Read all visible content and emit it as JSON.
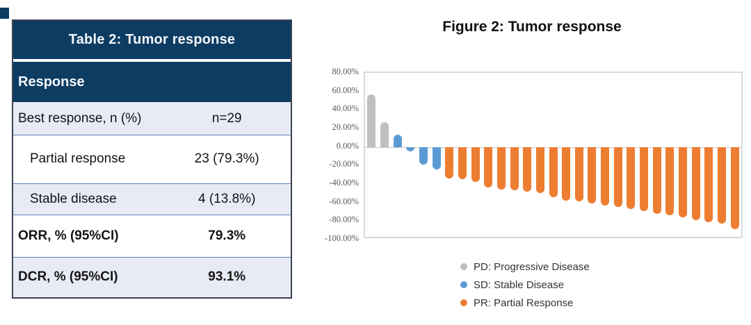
{
  "page": {
    "corner_mark_color": "#0d3c63"
  },
  "table": {
    "title": "Table 2: Tumor response",
    "column_header": "Response",
    "rows": [
      {
        "label": "Best response, n (%)",
        "value": "n=29",
        "indent": false,
        "bold": false,
        "shaded": true
      },
      {
        "label": "Partial response",
        "value": "23 (79.3%)",
        "indent": true,
        "bold": false,
        "shaded": false
      },
      {
        "label": "Stable disease",
        "value": "4 (13.8%)",
        "indent": true,
        "bold": false,
        "shaded": true
      },
      {
        "label": "ORR, % (95%CI)",
        "value": "79.3%",
        "indent": false,
        "bold": true,
        "shaded": false
      },
      {
        "label": "DCR, % (95%CI)",
        "value": "93.1%",
        "indent": false,
        "bold": true,
        "shaded": true
      }
    ],
    "colors": {
      "header_bg": "#0d3c63",
      "header_text": "#f4f6fa",
      "shaded_row_bg": "#e8ebf6",
      "plain_row_bg": "#ffffff",
      "row_separator": "#5d7fc0",
      "outer_border": "#3c4150"
    }
  },
  "chart_data": {
    "type": "bar",
    "title": "Figure 2: Tumor response",
    "subtitle": "",
    "xlabel": "",
    "ylabel": "",
    "ylim": [
      -100,
      80
    ],
    "grid": false,
    "legend_position": "bottom-center",
    "x_tick_labels": [],
    "y_axis": {
      "ticks": [
        {
          "label": "80.00%",
          "value": 80
        },
        {
          "label": "60.00%",
          "value": 60
        },
        {
          "label": "40.00%",
          "value": 40
        },
        {
          "label": "20.00%",
          "value": 20
        },
        {
          "label": "0.00%",
          "value": 0
        },
        {
          "label": "-20.00%",
          "value": -20
        },
        {
          "label": "-40.00%",
          "value": -40
        },
        {
          "label": "-60.00%",
          "value": -60
        },
        {
          "label": "-80.00%",
          "value": -80
        },
        {
          "label": "-100.00%",
          "value": -100
        }
      ]
    },
    "bars": [
      {
        "category": "PD",
        "value": 57
      },
      {
        "category": "PD",
        "value": 27
      },
      {
        "category": "SD",
        "value": 13
      },
      {
        "category": "SD",
        "value": -5
      },
      {
        "category": "SD",
        "value": -19
      },
      {
        "category": "SD",
        "value": -24
      },
      {
        "category": "PR",
        "value": -34
      },
      {
        "category": "PR",
        "value": -35
      },
      {
        "category": "PR",
        "value": -38
      },
      {
        "category": "PR",
        "value": -44
      },
      {
        "category": "PR",
        "value": -46
      },
      {
        "category": "PR",
        "value": -47
      },
      {
        "category": "PR",
        "value": -48
      },
      {
        "category": "PR",
        "value": -50
      },
      {
        "category": "PR",
        "value": -54
      },
      {
        "category": "PR",
        "value": -58
      },
      {
        "category": "PR",
        "value": -59
      },
      {
        "category": "PR",
        "value": -61
      },
      {
        "category": "PR",
        "value": -63
      },
      {
        "category": "PR",
        "value": -65
      },
      {
        "category": "PR",
        "value": -67
      },
      {
        "category": "PR",
        "value": -69
      },
      {
        "category": "PR",
        "value": -72
      },
      {
        "category": "PR",
        "value": -74
      },
      {
        "category": "PR",
        "value": -76
      },
      {
        "category": "PR",
        "value": -79
      },
      {
        "category": "PR",
        "value": -81
      },
      {
        "category": "PR",
        "value": -83
      },
      {
        "category": "PR",
        "value": -89
      }
    ],
    "colors": {
      "PD": "#bfbfbf",
      "SD": "#5b9bd5",
      "PR": "#ed7d31"
    },
    "legend": [
      {
        "category": "PD",
        "label": "PD: Progressive Disease"
      },
      {
        "category": "SD",
        "label": "SD: Stable Disease"
      },
      {
        "category": "PR",
        "label": "PR: Partial Response"
      }
    ]
  }
}
